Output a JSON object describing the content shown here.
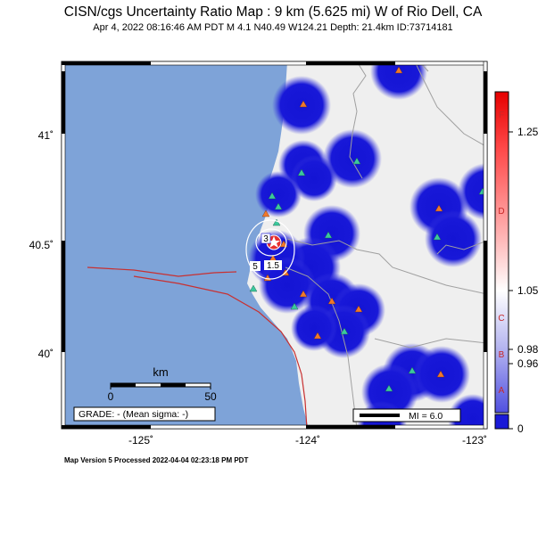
{
  "header": {
    "title": "CISN/cgs Uncertainty Ratio Map : 9 km (5.625 mi) W of Rio Dell, CA",
    "subtitle": "Apr  4, 2022 08:16:46 AM PDT   M 4.1   N40.49 W124.21   Depth: 21.4km   ID:73714181"
  },
  "footer": {
    "version": "Map Version 5 Processed 2022-04-04 02:23:18 PM PDT"
  },
  "axes": {
    "lat_ticks": [
      "41˚",
      "40.5˚",
      "40˚"
    ],
    "lon_ticks": [
      "-125˚",
      "-124˚",
      "-123˚"
    ]
  },
  "scalebar": {
    "unit": "km",
    "start": "0",
    "end": "50"
  },
  "grade": "GRADE: - (Mean sigma: -)",
  "mi_legend": "MI = 6.0",
  "contours": [
    "3",
    "5",
    "1.5"
  ],
  "colorbar": {
    "grades": [
      "F",
      "D",
      "C",
      "B",
      "A"
    ],
    "values": [
      "1.25",
      "1.05",
      "0.98",
      "0.96",
      "0"
    ]
  },
  "colors": {
    "ocean": "#7ea3d8",
    "land": "#efefef",
    "uncertainty_low": "#1a1ad8",
    "station_green": "#3cc89c",
    "station_orange": "#f0782a",
    "fault": "#c83030",
    "border": "#a0a0a0"
  }
}
